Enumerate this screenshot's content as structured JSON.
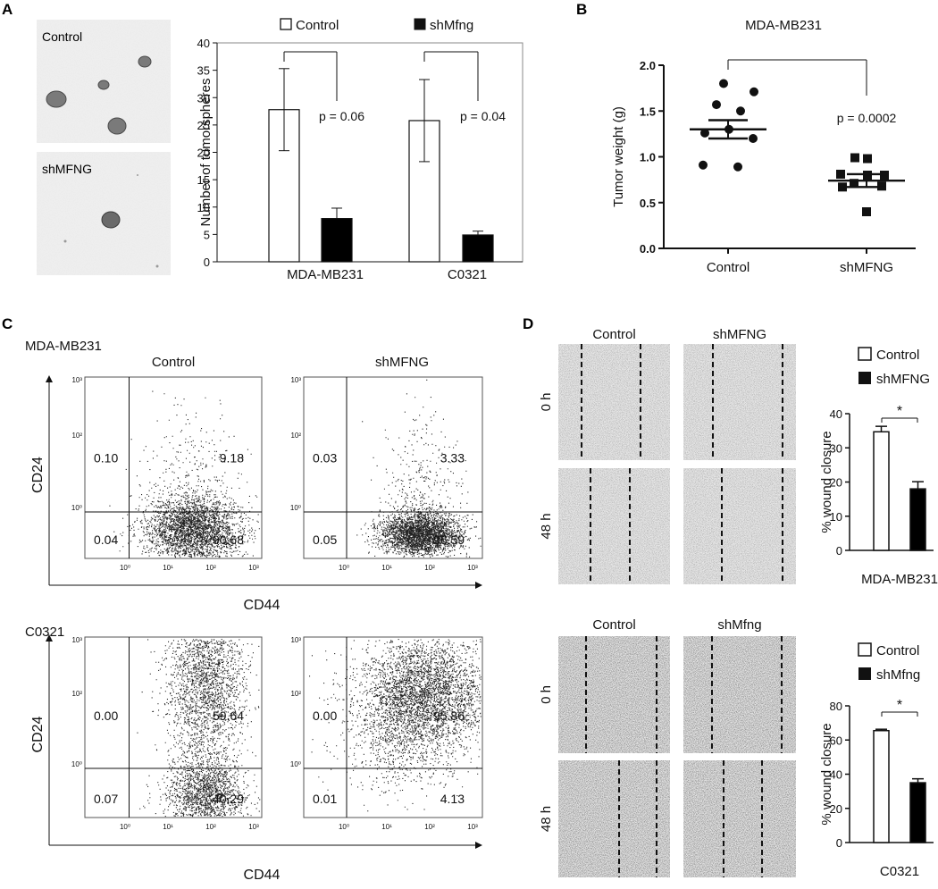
{
  "panels": {
    "A": {
      "letter": "A",
      "image_labels": [
        "Control",
        "shMFNG"
      ],
      "legend": [
        "Control",
        "shMfng"
      ],
      "ylabel": "Number of tumorspheres",
      "y_ticks": [
        "0",
        "5",
        "10",
        "15",
        "20",
        "25",
        "30",
        "35",
        "40"
      ],
      "pvalues": [
        "p = 0.06",
        "p = 0.04"
      ]
    },
    "B": {
      "letter": "B",
      "title": "MDA-MB231",
      "ylabel": "Tumor weight (g)",
      "y_ticks": [
        "0.0",
        "0.5",
        "1.0",
        "1.5",
        "2.0"
      ],
      "pvalue": "p = 0.0002"
    },
    "C": {
      "letter": "C",
      "blocks": [
        {
          "cell_line": "MDA-MB231",
          "titles": [
            "Control",
            "shMFNG"
          ],
          "quadrants": [
            [
              "0.10",
              "9.18",
              "0.04",
              "90.68"
            ],
            [
              "0.03",
              "3.33",
              "0.05",
              "96.59"
            ]
          ]
        },
        {
          "cell_line": "C0321",
          "titles": [
            "Control",
            "shMfng"
          ],
          "quadrants": [
            [
              "0.00",
              "59.64",
              "0.07",
              "40.29"
            ],
            [
              "0.00",
              "95.86",
              "0.01",
              "4.13"
            ]
          ]
        }
      ],
      "xlabel": "CD44",
      "ylabel": "CD24",
      "tick_labels": [
        "10⁰",
        "10¹",
        "10²",
        "10³"
      ]
    },
    "D": {
      "letter": "D",
      "blocks": [
        {
          "titles": [
            "Control",
            "shMFNG"
          ],
          "rows": [
            "0 h",
            "48 h"
          ],
          "legend": [
            "Control",
            "shMFNG"
          ],
          "cell_line": "MDA-MB231",
          "y_ticks": [
            "0",
            "10",
            "20",
            "30",
            "40"
          ],
          "significance": "*"
        },
        {
          "titles": [
            "Control",
            "shMfng"
          ],
          "rows": [
            "0 h",
            "48 h"
          ],
          "legend": [
            "Control",
            "shMfng"
          ],
          "cell_line": "C0321",
          "y_ticks": [
            "0",
            "20",
            "40",
            "60",
            "80"
          ],
          "significance": "*"
        }
      ],
      "ylabel": "% wound closure"
    }
  },
  "chart_data": [
    {
      "type": "bar",
      "panel": "A",
      "categories": [
        "MDA-MB231",
        "C0321"
      ],
      "series": [
        {
          "name": "Control",
          "values": [
            27.8,
            25.8
          ],
          "errors": [
            7.5,
            7.5
          ],
          "color": "#ffffff"
        },
        {
          "name": "shMfng",
          "values": [
            7.9,
            4.9
          ],
          "errors": [
            1.9,
            0.7
          ],
          "color": "#000000"
        }
      ],
      "ylabel": "Number of tumorspheres",
      "ylim": [
        0,
        40
      ]
    },
    {
      "type": "scatter",
      "panel": "B",
      "title": "MDA-MB231",
      "categories": [
        "Control",
        "shMFNG"
      ],
      "series": [
        {
          "name": "Control",
          "values": [
            1.8,
            1.71,
            1.57,
            1.5,
            1.3,
            1.26,
            1.2,
            0.91,
            0.89
          ],
          "mean": 1.3,
          "sem": 0.1
        },
        {
          "name": "shMFNG",
          "values": [
            0.99,
            0.98,
            0.81,
            0.8,
            0.8,
            0.71,
            0.68,
            0.67,
            0.4
          ],
          "mean": 0.74,
          "sem": 0.07
        }
      ],
      "ylabel": "Tumor weight (g)",
      "ylim": [
        0,
        2
      ]
    },
    {
      "type": "bar",
      "panel": "D",
      "categories": [
        "MDA-MB231"
      ],
      "series": [
        {
          "name": "Control",
          "values": [
            34.7
          ],
          "errors": [
            1.6
          ],
          "color": "#ffffff"
        },
        {
          "name": "shMFNG",
          "values": [
            18.0
          ],
          "errors": [
            2.1
          ],
          "color": "#000000"
        }
      ],
      "ylabel": "% wound closure",
      "ylim": [
        0,
        40
      ]
    },
    {
      "type": "bar",
      "panel": "D",
      "categories": [
        "C0321"
      ],
      "series": [
        {
          "name": "Control",
          "values": [
            65.5
          ],
          "errors": [
            0.8
          ],
          "color": "#ffffff"
        },
        {
          "name": "shMfng",
          "values": [
            35.0
          ],
          "errors": [
            2.3
          ],
          "color": "#000000"
        }
      ],
      "ylabel": "% wound closure",
      "ylim": [
        0,
        80
      ]
    }
  ]
}
